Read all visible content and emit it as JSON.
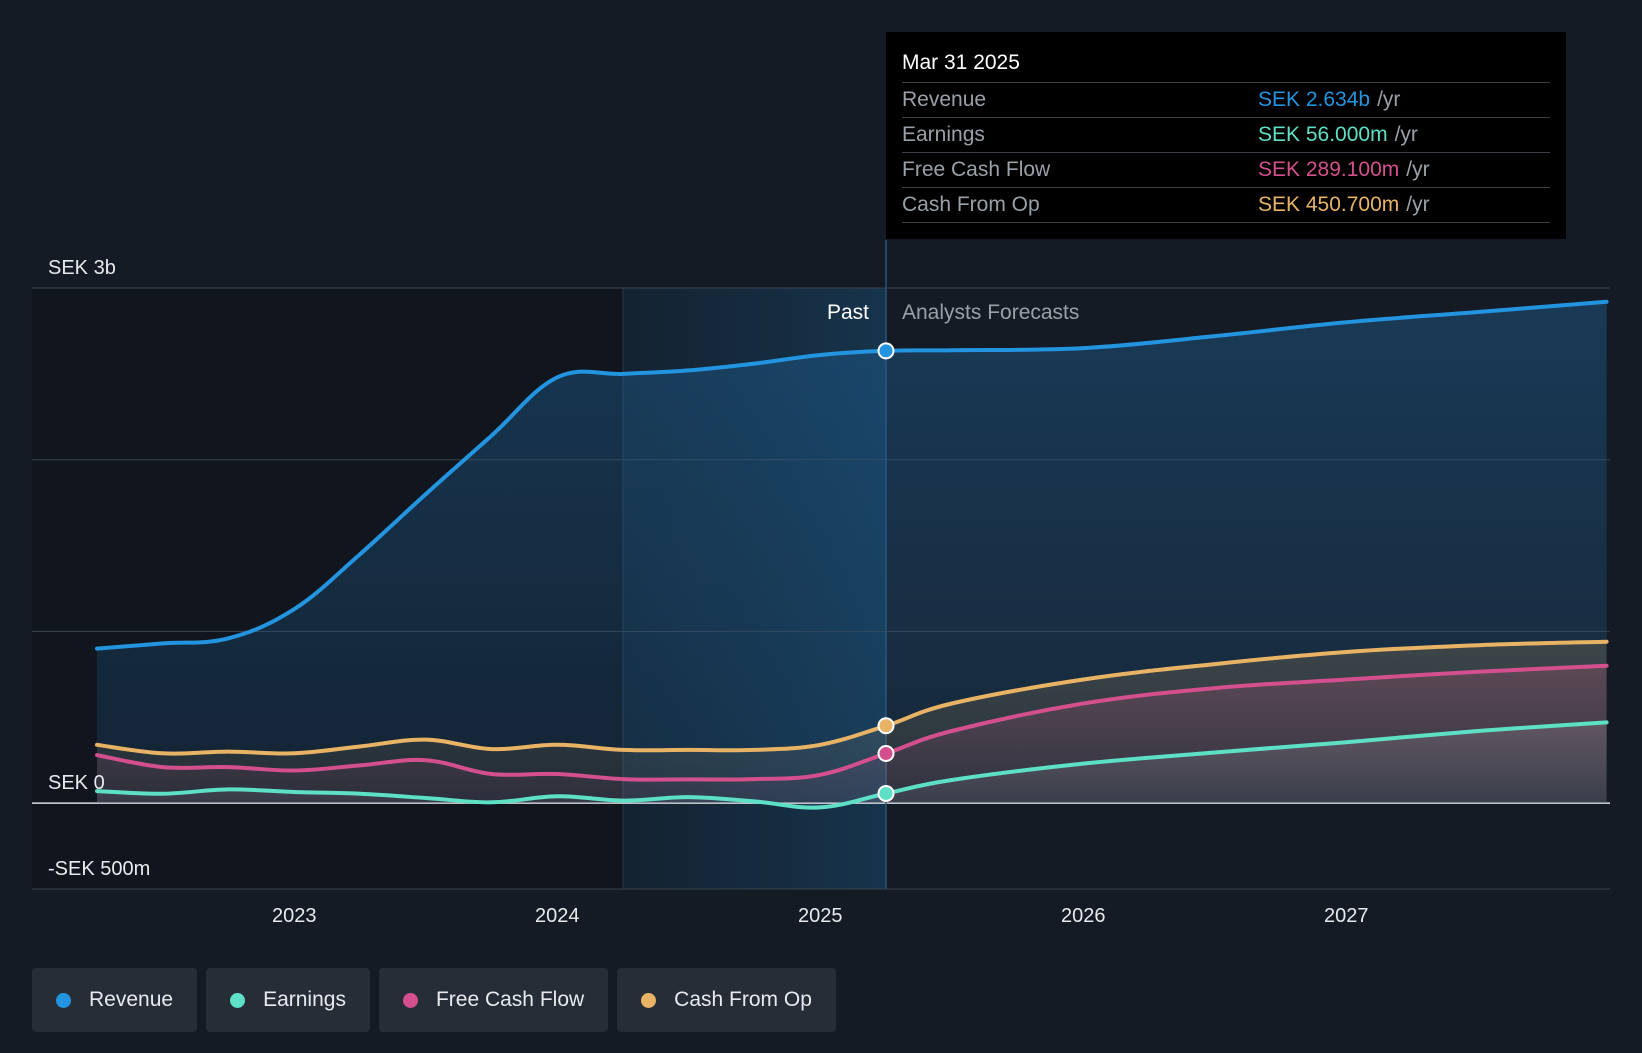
{
  "chart_data": {
    "type": "area",
    "y_unit": "SEK m",
    "ylim": [
      -500,
      3000
    ],
    "y_tick_labels": [
      {
        "value": 3000,
        "label": "SEK 3b"
      },
      {
        "value": 0,
        "label": "SEK 0"
      },
      {
        "value": -500,
        "label": "-SEK 500m"
      }
    ],
    "y_gridlines": [
      3000,
      2000,
      1000,
      0,
      -500
    ],
    "xlim": [
      2022.24,
      2027.99
    ],
    "x_ticks": [
      {
        "value": 2023,
        "label": "2023"
      },
      {
        "value": 2024,
        "label": "2024"
      },
      {
        "value": 2025,
        "label": "2025"
      },
      {
        "value": 2026,
        "label": "2026"
      },
      {
        "value": 2027,
        "label": "2027"
      }
    ],
    "highlight_start": 2024.25,
    "divider_x": 2025.25,
    "past_label": "Past",
    "forecast_label": "Analysts Forecasts",
    "series": [
      {
        "name": "Revenue",
        "color": "#2394df",
        "points": [
          [
            2022.25,
            900
          ],
          [
            2022.5,
            930
          ],
          [
            2022.75,
            960
          ],
          [
            2023.0,
            1130
          ],
          [
            2023.25,
            1450
          ],
          [
            2023.5,
            1800
          ],
          [
            2023.75,
            2140
          ],
          [
            2024.0,
            2480
          ],
          [
            2024.25,
            2500
          ],
          [
            2024.5,
            2520
          ],
          [
            2024.75,
            2560
          ],
          [
            2025.0,
            2610
          ],
          [
            2025.25,
            2634
          ],
          [
            2025.5,
            2638
          ],
          [
            2026.0,
            2650
          ],
          [
            2026.5,
            2720
          ],
          [
            2027.0,
            2800
          ],
          [
            2027.5,
            2860
          ],
          [
            2027.99,
            2920
          ]
        ]
      },
      {
        "name": "Earnings",
        "color": "#5de0c5",
        "points": [
          [
            2022.25,
            70
          ],
          [
            2022.5,
            55
          ],
          [
            2022.75,
            80
          ],
          [
            2023.0,
            65
          ],
          [
            2023.25,
            55
          ],
          [
            2023.5,
            30
          ],
          [
            2023.75,
            5
          ],
          [
            2024.0,
            40
          ],
          [
            2024.25,
            15
          ],
          [
            2024.5,
            35
          ],
          [
            2024.75,
            10
          ],
          [
            2025.0,
            -25
          ],
          [
            2025.25,
            56
          ],
          [
            2025.5,
            135
          ],
          [
            2026.0,
            230
          ],
          [
            2026.5,
            295
          ],
          [
            2027.0,
            355
          ],
          [
            2027.5,
            420
          ],
          [
            2027.99,
            470
          ]
        ]
      },
      {
        "name": "Free Cash Flow",
        "color": "#d44f8e",
        "points": [
          [
            2022.25,
            280
          ],
          [
            2022.5,
            210
          ],
          [
            2022.75,
            210
          ],
          [
            2023.0,
            190
          ],
          [
            2023.25,
            220
          ],
          [
            2023.5,
            250
          ],
          [
            2023.75,
            170
          ],
          [
            2024.0,
            170
          ],
          [
            2024.25,
            140
          ],
          [
            2024.5,
            138
          ],
          [
            2024.75,
            140
          ],
          [
            2025.0,
            165
          ],
          [
            2025.25,
            289
          ],
          [
            2025.5,
            420
          ],
          [
            2026.0,
            580
          ],
          [
            2026.5,
            670
          ],
          [
            2027.0,
            720
          ],
          [
            2027.5,
            765
          ],
          [
            2027.99,
            800
          ]
        ]
      },
      {
        "name": "Cash From Op",
        "color": "#e8b365",
        "points": [
          [
            2022.25,
            340
          ],
          [
            2022.5,
            290
          ],
          [
            2022.75,
            300
          ],
          [
            2023.0,
            290
          ],
          [
            2023.25,
            330
          ],
          [
            2023.5,
            370
          ],
          [
            2023.75,
            315
          ],
          [
            2024.0,
            340
          ],
          [
            2024.25,
            310
          ],
          [
            2024.5,
            310
          ],
          [
            2024.75,
            310
          ],
          [
            2025.0,
            340
          ],
          [
            2025.25,
            450.7
          ],
          [
            2025.5,
            580
          ],
          [
            2026.0,
            720
          ],
          [
            2026.5,
            810
          ],
          [
            2027.0,
            880
          ],
          [
            2027.5,
            920
          ],
          [
            2027.99,
            940
          ]
        ]
      }
    ]
  },
  "tooltip": {
    "date": "Mar 31 2025",
    "unit": "/yr",
    "rows": [
      {
        "label": "Revenue",
        "value": "SEK 2.634b",
        "color": "#2394df"
      },
      {
        "label": "Earnings",
        "value": "SEK 56.000m",
        "color": "#5de0c5"
      },
      {
        "label": "Free Cash Flow",
        "value": "SEK 289.100m",
        "color": "#d44f8e"
      },
      {
        "label": "Cash From Op",
        "value": "SEK 450.700m",
        "color": "#e8b365"
      }
    ]
  },
  "legend": [
    {
      "label": "Revenue",
      "color": "#2394df"
    },
    {
      "label": "Earnings",
      "color": "#5de0c5"
    },
    {
      "label": "Free Cash Flow",
      "color": "#d44f8e"
    },
    {
      "label": "Cash From Op",
      "color": "#e8b365"
    }
  ]
}
